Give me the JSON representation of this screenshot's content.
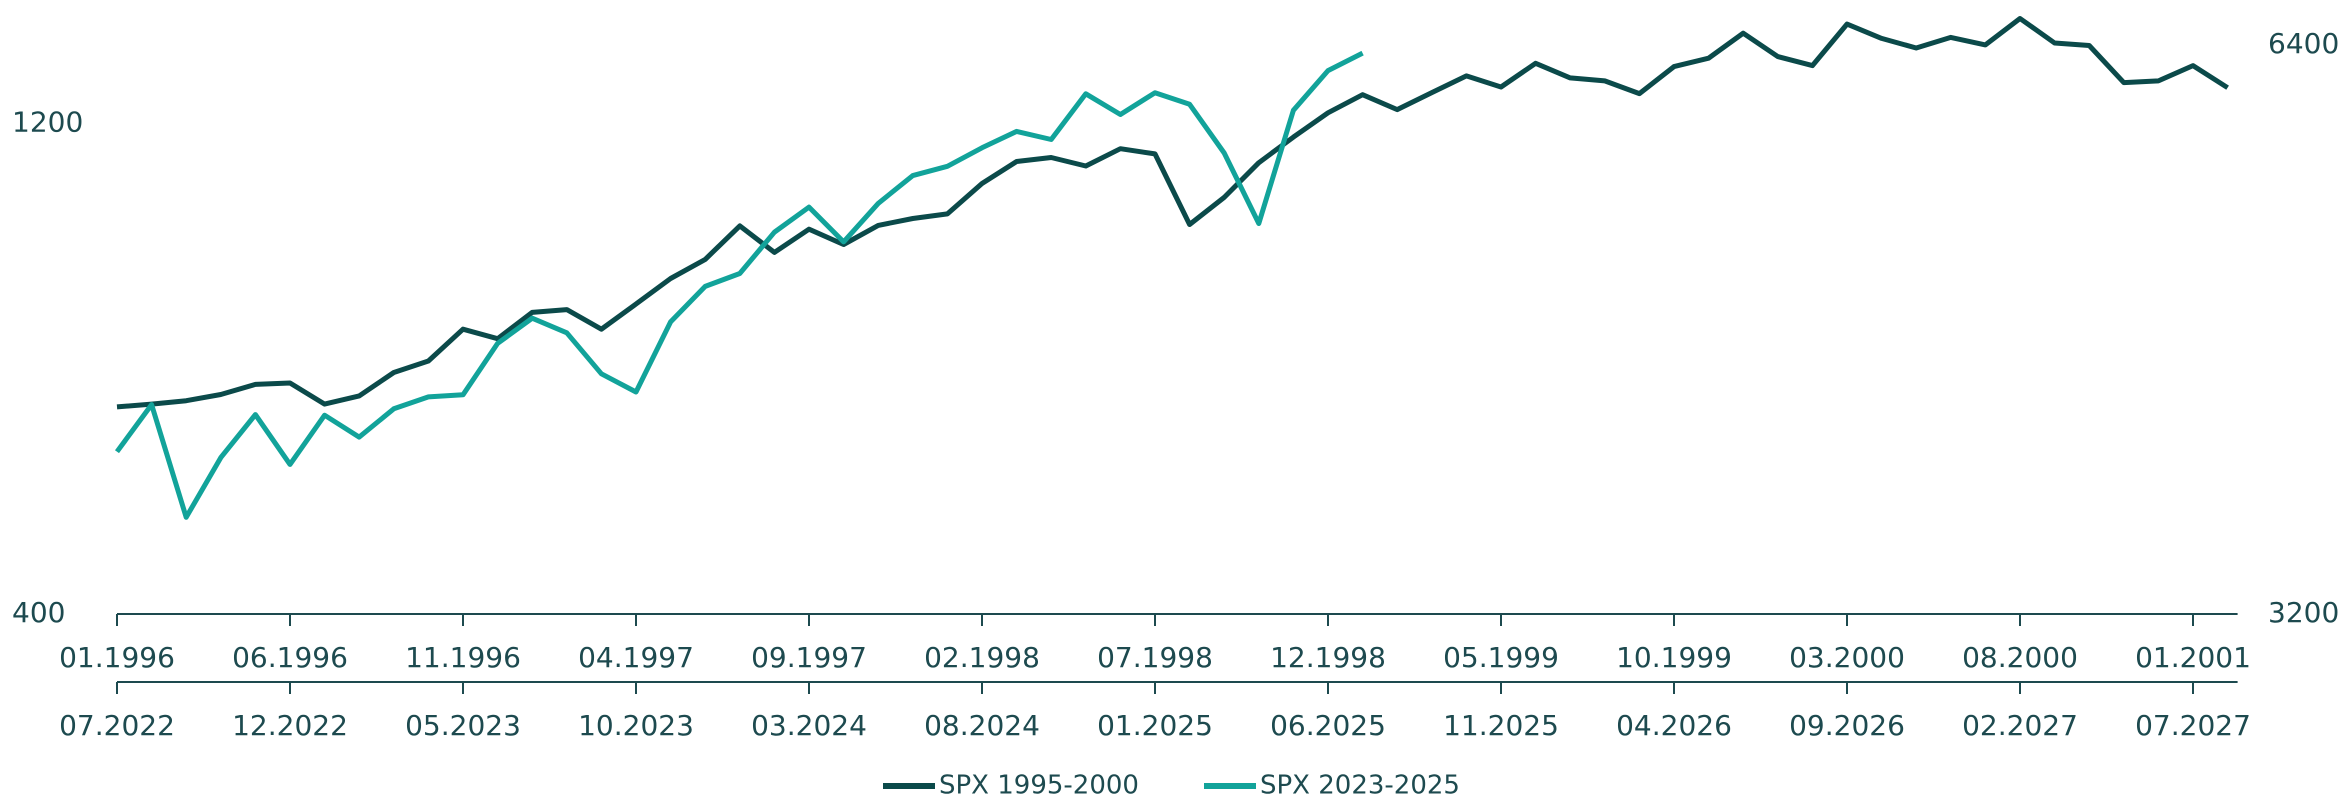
{
  "chart_data": {
    "type": "line",
    "x": [
      "01.1996",
      "02.1996",
      "03.1996",
      "04.1996",
      "05.1996",
      "06.1996",
      "07.1996",
      "08.1996",
      "09.1996",
      "10.1996",
      "11.1996",
      "12.1996",
      "01.1997",
      "02.1997",
      "03.1997",
      "04.1997",
      "05.1997",
      "06.1997",
      "07.1997",
      "08.1997",
      "09.1997",
      "10.1997",
      "11.1997",
      "12.1997",
      "01.1998",
      "02.1998",
      "03.1998",
      "04.1998",
      "05.1998",
      "06.1998",
      "07.1998",
      "08.1998",
      "09.1998",
      "10.1998",
      "11.1998",
      "12.1998",
      "01.1999",
      "02.1999",
      "03.1999",
      "04.1999",
      "05.1999",
      "06.1999",
      "07.1999",
      "08.1999",
      "09.1999",
      "10.1999",
      "11.1999",
      "12.1999",
      "01.2000",
      "02.2000",
      "03.2000",
      "04.2000",
      "05.2000",
      "06.2000",
      "07.2000",
      "08.2000",
      "09.2000",
      "10.2000",
      "11.2000",
      "12.2000",
      "01.2001",
      "02.2001"
    ],
    "series": [
      {
        "name": "SPX 1995-2000",
        "color": "#0b4a4a",
        "axis": "y",
        "values": [
          636,
          640,
          645,
          654,
          669,
          671,
          640,
          652,
          687,
          705,
          757,
          741,
          786,
          791,
          757,
          801,
          848,
          885,
          954,
          899,
          947,
          915,
          955,
          970,
          980,
          1049,
          1102,
          1112,
          1091,
          1134,
          1121,
          957,
          1017,
          1099,
          1164,
          1229,
          1280,
          1238,
          1286,
          1335,
          1302,
          1373,
          1329,
          1320,
          1283,
          1363,
          1389,
          1469,
          1394,
          1366,
          1499,
          1452,
          1421,
          1455,
          1431,
          1518,
          1437,
          1429,
          1315,
          1320,
          1366,
          1300
        ]
      },
      {
        "name": "SPX 2023-2025",
        "color": "#12a39a",
        "axis": "y2",
        "values": [
          3900,
          4130,
          3600,
          3872,
          4080,
          3840,
          4077,
          3970,
          4109,
          4169,
          4180,
          4450,
          4589,
          4508,
          4288,
          4194,
          4568,
          4770,
          4846,
          5096,
          5254,
          5036,
          5278,
          5460,
          5522,
          5648,
          5762,
          5705,
          6032,
          5882,
          6040,
          5955,
          5612,
          5150,
          5912,
          6205,
          6339,
          null,
          null,
          null,
          null,
          null,
          null,
          null,
          null,
          null,
          null,
          null,
          null,
          null,
          null,
          null,
          null,
          null,
          null,
          null,
          null,
          null,
          null,
          null,
          null,
          null
        ]
      }
    ],
    "log_scale": true,
    "ylim": [
      400,
      1530
    ],
    "yticks": [
      400,
      1200
    ],
    "y2lim": [
      3200,
      6640
    ],
    "y2ticks": [
      3200,
      6400
    ],
    "xticks": [
      "01.1996",
      "06.1996",
      "11.1996",
      "04.1997",
      "09.1997",
      "02.1998",
      "07.1998",
      "12.1998",
      "05.1999",
      "10.1999",
      "03.2000",
      "08.2000",
      "01.2001"
    ],
    "x2ticks": [
      "07.2022",
      "12.2022",
      "05.2023",
      "10.2023",
      "03.2024",
      "08.2024",
      "01.2025",
      "06.2025",
      "11.2025",
      "04.2026",
      "09.2026",
      "02.2027",
      "07.2027"
    ],
    "legend": "bottom",
    "grid": false
  }
}
